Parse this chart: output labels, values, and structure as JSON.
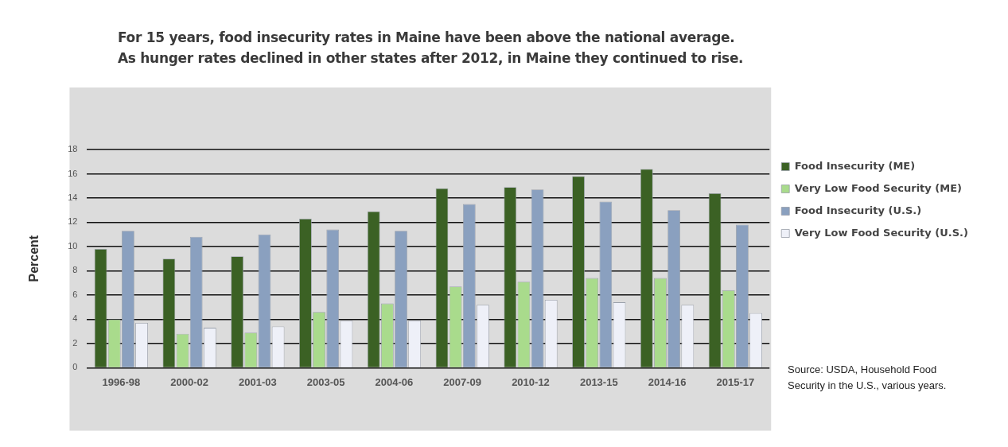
{
  "chart_data": {
    "type": "bar",
    "title": "For 15 years, food insecurity rates in Maine have been above the national average.\nAs hunger rates declined in other states after 2012, in Maine they continued to rise.",
    "ylabel": "Percent",
    "categories": [
      "1996-98",
      "2000-02",
      "2001-03",
      "2003-05",
      "2004-06",
      "2007-09",
      "2010-12",
      "2013-15",
      "2014-16",
      "2015-17"
    ],
    "series": [
      {
        "name": "Food Insecurity (ME)",
        "color": "#3b6124",
        "values": [
          9.8,
          9.0,
          9.2,
          12.3,
          12.9,
          14.8,
          14.9,
          15.8,
          16.4,
          14.4
        ]
      },
      {
        "name": "Very Low Food Security (ME)",
        "color": "#a9db8c",
        "values": [
          4.0,
          2.8,
          2.9,
          4.6,
          5.3,
          6.7,
          7.1,
          7.4,
          7.4,
          6.4
        ]
      },
      {
        "name": "Food Insecurity (U.S.)",
        "color": "#8aa0bf",
        "values": [
          11.3,
          10.8,
          11.0,
          11.4,
          11.3,
          13.5,
          14.7,
          13.7,
          13.0,
          11.8
        ]
      },
      {
        "name": "Very Low Food Security (U.S.)",
        "color": "#eef0f8",
        "values": [
          3.7,
          3.3,
          3.4,
          3.9,
          3.9,
          5.2,
          5.6,
          5.4,
          5.2,
          4.5
        ]
      }
    ],
    "ylim": [
      0,
      18
    ],
    "yticks": [
      0,
      2,
      4,
      6,
      8,
      10,
      12,
      14,
      16,
      18
    ],
    "grid": "y",
    "legend": "right",
    "annotations": [
      "Source: USDA, Household Food Security in the U.S., various years."
    ]
  }
}
